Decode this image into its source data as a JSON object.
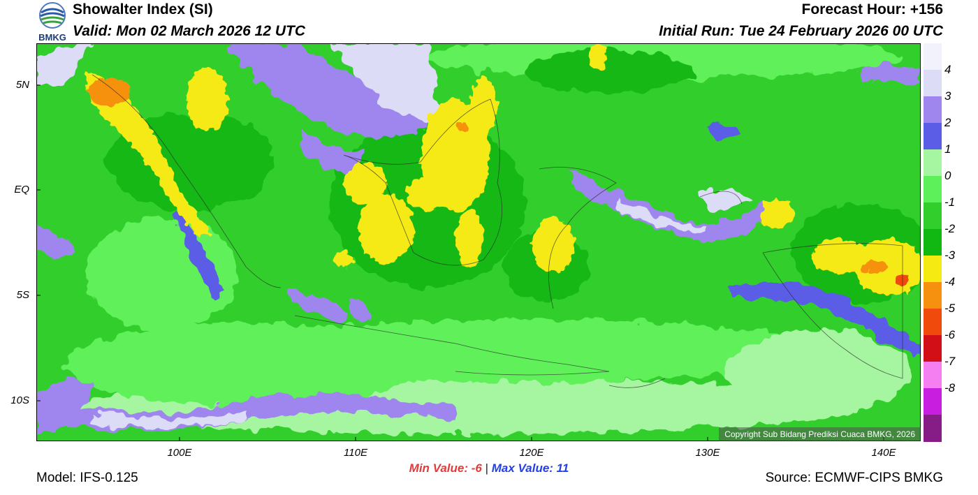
{
  "header": {
    "title": "Showalter Index (SI)",
    "valid": "Valid: Mon 02 March 2026 12 UTC",
    "forecast_hour": "Forecast Hour: +156",
    "initial_run": "Initial Run: Tue 24 February 2026 00 UTC",
    "logo_text": "BMKG"
  },
  "map": {
    "copyright": "Copyright Sub Bidang Prediksi Cuaca BMKG, 2026",
    "lat_labels": [
      "5N",
      "EQ",
      "5S",
      "10S"
    ],
    "lon_labels": [
      "100E",
      "110E",
      "120E",
      "130E",
      "140E"
    ]
  },
  "colorbar": {
    "levels": [
      {
        "label": "4",
        "color": "#dcdcf7"
      },
      {
        "label": "3",
        "color": "#9f86ee"
      },
      {
        "label": "2",
        "color": "#5b5de6"
      },
      {
        "label": "1",
        "color": "#a6f5a0"
      },
      {
        "label": "0",
        "color": "#5ef05a"
      },
      {
        "label": "-1",
        "color": "#32cf2c"
      },
      {
        "label": "-2",
        "color": "#12b812"
      },
      {
        "label": "-3",
        "color": "#f5ea12"
      },
      {
        "label": "-4",
        "color": "#f5910e"
      },
      {
        "label": "-5",
        "color": "#f04a0c"
      },
      {
        "label": "-6",
        "color": "#d20f16"
      },
      {
        "label": "-7",
        "color": "#f57ef0"
      },
      {
        "label": "-8",
        "color": "#c81ee0"
      }
    ],
    "top_color": "#f2f2fc",
    "bottom_color": "#861d86"
  },
  "footer": {
    "min_label": "Min Value:  -6",
    "separator": "|",
    "max_label": "Max Value:  11",
    "model": "Model: IFS-0.125",
    "source": "Source: ECMWF-CIPS BMKG"
  }
}
